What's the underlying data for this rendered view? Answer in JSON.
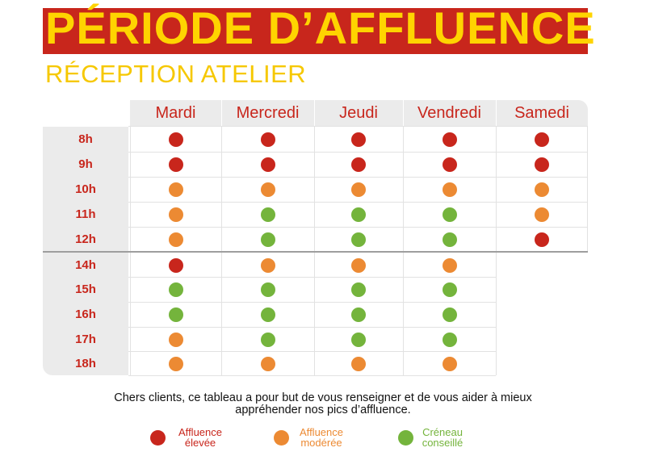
{
  "header": {
    "title": "PÉRIODE D’AFFLUENCE",
    "subtitle": "RÉCEPTION ATELIER"
  },
  "colors": {
    "eleve": "#c8261c",
    "modere": "#ec8a33",
    "conseille": "#74b43c"
  },
  "schedule": {
    "days": [
      "Mardi",
      "Mercredi",
      "Jeudi",
      "Vendredi",
      "Samedi"
    ],
    "hours": [
      "8h",
      "9h",
      "10h",
      "11h",
      "12h",
      "14h",
      "15h",
      "16h",
      "17h",
      "18h"
    ],
    "status_rows": [
      [
        "eleve",
        "eleve",
        "eleve",
        "eleve",
        "eleve"
      ],
      [
        "eleve",
        "eleve",
        "eleve",
        "eleve",
        "eleve"
      ],
      [
        "modere",
        "modere",
        "modere",
        "modere",
        "modere"
      ],
      [
        "modere",
        "conseille",
        "conseille",
        "conseille",
        "modere"
      ],
      [
        "modere",
        "conseille",
        "conseille",
        "conseille",
        "eleve"
      ],
      [
        "eleve",
        "modere",
        "modere",
        "modere",
        null
      ],
      [
        "conseille",
        "conseille",
        "conseille",
        "conseille",
        null
      ],
      [
        "conseille",
        "conseille",
        "conseille",
        "conseille",
        null
      ],
      [
        "modere",
        "conseille",
        "conseille",
        "conseille",
        null
      ],
      [
        "modere",
        "modere",
        "modere",
        "modere",
        null
      ]
    ]
  },
  "footer": {
    "note_line1": "Chers clients, ce tableau a pour but de vous renseigner et de vous aider à mieux",
    "note_line2": "appréhender nos pics d’affluence.",
    "legend": [
      {
        "key": "eleve",
        "line1": "Affluence",
        "line2": "élevée"
      },
      {
        "key": "modere",
        "line1": "Affluence",
        "line2": "modérée"
      },
      {
        "key": "conseille",
        "line1": "Créneau",
        "line2": "conseillé"
      }
    ]
  }
}
